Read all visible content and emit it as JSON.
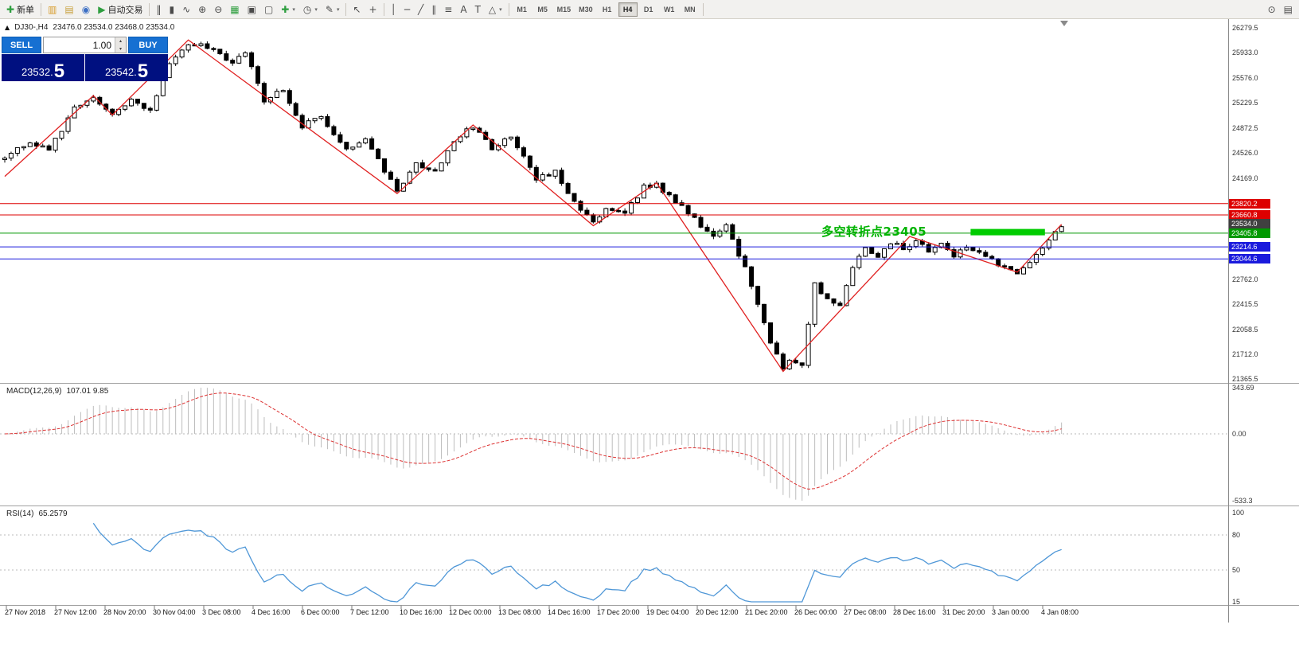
{
  "glyphs": {
    "panel_toggle": "▲",
    "spin_up": "▴",
    "spin_down": "▾",
    "dropdown_caret": "▾"
  },
  "toolbar": {
    "groups": [
      {
        "name": "trade",
        "items": [
          {
            "name": "new-order-button",
            "icon": "new-order-icon",
            "glyph": "✚",
            "glyph_color": "#2e9e3f",
            "label": "新单"
          }
        ]
      },
      {
        "name": "windows",
        "items": [
          {
            "name": "new-chart-button",
            "icon": "new-chart-icon",
            "glyph": "▥",
            "glyph_color": "#d79b28"
          },
          {
            "name": "profiles-button",
            "icon": "profiles-icon",
            "glyph": "▤",
            "glyph_color": "#c8a03c"
          },
          {
            "name": "data-window-button",
            "icon": "data-window-icon",
            "glyph": "◉",
            "glyph_color": "#3d6fc4"
          },
          {
            "name": "autotrade-button",
            "icon": "autotrade-icon",
            "glyph": "▶",
            "glyph_color": "#2e9e3f",
            "label": "自动交易"
          }
        ]
      },
      {
        "name": "chart-controls",
        "items": [
          {
            "name": "bar-chart-button",
            "icon": "bar-chart-icon",
            "glyph": "‖"
          },
          {
            "name": "candlestick-chart-button",
            "icon": "candlestick-icon",
            "glyph": "▮"
          },
          {
            "name": "line-chart-button",
            "icon": "line-chart-icon",
            "glyph": "∿"
          },
          {
            "name": "zoom-in-button",
            "icon": "zoom-in-icon",
            "glyph": "⊕"
          },
          {
            "name": "zoom-out-button",
            "icon": "zoom-out-icon",
            "glyph": "⊖"
          },
          {
            "name": "tile-windows-button",
            "icon": "tile-windows-icon",
            "glyph": "▦",
            "glyph_color": "#2e9e3f"
          },
          {
            "name": "cascade-windows-button",
            "icon": "cascade-windows-icon",
            "glyph": "▣"
          },
          {
            "name": "arrange-windows-button",
            "icon": "arrange-windows-icon",
            "glyph": "▢"
          },
          {
            "name": "new-chart-dropdown",
            "icon": "chart-plus-icon",
            "glyph": "✚",
            "glyph_color": "#2e9e3f",
            "dropdown": true
          },
          {
            "name": "periods-dropdown",
            "icon": "clock-icon",
            "glyph": "◷",
            "dropdown": true
          },
          {
            "name": "templates-dropdown",
            "icon": "pencil-icon",
            "glyph": "✎",
            "dropdown": true
          }
        ]
      },
      {
        "name": "pointer",
        "items": [
          {
            "name": "cursor-button",
            "icon": "cursor-icon",
            "glyph": "↖"
          },
          {
            "name": "crosshair-button",
            "icon": "crosshair-icon",
            "glyph": "+"
          }
        ]
      },
      {
        "name": "objects",
        "items": [
          {
            "name": "vline-button",
            "icon": "vline-icon",
            "glyph": "│"
          },
          {
            "name": "hline-button",
            "icon": "hline-icon",
            "glyph": "─"
          },
          {
            "name": "trendline-button",
            "icon": "trendline-icon",
            "glyph": "╱"
          },
          {
            "name": "channel-button",
            "icon": "channel-icon",
            "glyph": "∥"
          },
          {
            "name": "fibonacci-button",
            "icon": "fibonacci-icon",
            "glyph": "≡"
          },
          {
            "name": "text-button",
            "icon": "text-icon",
            "glyph": "A"
          },
          {
            "name": "label-button",
            "icon": "label-icon",
            "glyph": "T"
          },
          {
            "name": "shapes-dropdown",
            "icon": "shapes-icon",
            "glyph": "△",
            "dropdown": true
          }
        ]
      }
    ],
    "timeframes": [
      {
        "label": "M1",
        "active": false
      },
      {
        "label": "M5",
        "active": false
      },
      {
        "label": "M15",
        "active": false
      },
      {
        "label": "M30",
        "active": false
      },
      {
        "label": "H1",
        "active": false
      },
      {
        "label": "H4",
        "active": true
      },
      {
        "label": "D1",
        "active": false
      },
      {
        "label": "W1",
        "active": false
      },
      {
        "label": "MN",
        "active": false
      }
    ],
    "right_icons": [
      {
        "name": "search-button",
        "icon": "search-icon",
        "glyph": "⊙"
      },
      {
        "name": "layout-button",
        "icon": "layout-icon",
        "glyph": "▤"
      }
    ]
  },
  "legend": {
    "symbol_period": "DJ30-,H4",
    "ohlc": "23476.0 23534.0 23468.0 23534.0"
  },
  "one_click": {
    "sell_label": "SELL",
    "buy_label": "BUY",
    "lot": "1.00",
    "sell_price_main": "23532.",
    "sell_price_pip": "5",
    "buy_price_main": "23542.",
    "buy_price_pip": "5"
  },
  "chart_data": {
    "type": "candlestick",
    "symbol": "DJ30-",
    "period": "H4",
    "bars": 168,
    "price_axis": {
      "min": 21365.5,
      "max": 26279.5,
      "ticks": [
        26279.5,
        25933.0,
        25576.0,
        25229.5,
        24872.5,
        24526.0,
        24169.0,
        22762.0,
        22415.5,
        22058.5,
        21712.0,
        21365.5
      ]
    },
    "hlines": [
      {
        "price": 23820.2,
        "label": "23820.2",
        "color": "#dd0000"
      },
      {
        "price": 23660.8,
        "label": "23660.8",
        "color": "#dd0000"
      },
      {
        "price": 23405.8,
        "label": "23405.8",
        "color": "#009900"
      },
      {
        "price": 23214.6,
        "label": "23214.6",
        "color": "#1a1add"
      },
      {
        "price": 23044.6,
        "label": "23044.6",
        "color": "#1a1add"
      }
    ],
    "current_price": {
      "label": "23534.0",
      "price": 23534.0,
      "color": "#404040"
    },
    "annotation": {
      "text": "多空转折点23405",
      "color": "#00b300"
    },
    "highlight_bar": {
      "from_bar": 153,
      "to_bar": 164,
      "price": 23420,
      "color": "#00cc00"
    },
    "candle_path_pivots": [
      [
        0,
        24450
      ],
      [
        4,
        24700
      ],
      [
        7,
        24560
      ],
      [
        11,
        25150
      ],
      [
        14,
        25320
      ],
      [
        17,
        25060
      ],
      [
        20,
        25280
      ],
      [
        23,
        25120
      ],
      [
        26,
        25800
      ],
      [
        29,
        26060
      ],
      [
        33,
        26000
      ],
      [
        36,
        25780
      ],
      [
        38,
        25950
      ],
      [
        41,
        25250
      ],
      [
        44,
        25420
      ],
      [
        47,
        24900
      ],
      [
        50,
        25050
      ],
      [
        54,
        24550
      ],
      [
        57,
        24700
      ],
      [
        62,
        24000
      ],
      [
        65,
        24380
      ],
      [
        68,
        24280
      ],
      [
        71,
        24700
      ],
      [
        74,
        24900
      ],
      [
        77,
        24600
      ],
      [
        80,
        24750
      ],
      [
        84,
        24150
      ],
      [
        87,
        24280
      ],
      [
        90,
        23850
      ],
      [
        93,
        23540
      ],
      [
        95,
        23780
      ],
      [
        98,
        23680
      ],
      [
        101,
        24050
      ],
      [
        103,
        24090
      ],
      [
        106,
        23850
      ],
      [
        109,
        23600
      ],
      [
        112,
        23350
      ],
      [
        114,
        23500
      ],
      [
        117,
        22900
      ],
      [
        119,
        22400
      ],
      [
        121,
        21900
      ],
      [
        123,
        21500
      ],
      [
        124,
        21650
      ],
      [
        126,
        21580
      ],
      [
        128,
        22680
      ],
      [
        130,
        22480
      ],
      [
        132,
        22380
      ],
      [
        134,
        22950
      ],
      [
        136,
        23200
      ],
      [
        138,
        23100
      ],
      [
        140,
        23280
      ],
      [
        142,
        23180
      ],
      [
        144,
        23300
      ],
      [
        146,
        23150
      ],
      [
        148,
        23280
      ],
      [
        150,
        23060
      ],
      [
        152,
        23230
      ],
      [
        154,
        23120
      ],
      [
        156,
        23020
      ],
      [
        158,
        22950
      ],
      [
        160,
        22870
      ],
      [
        162,
        23020
      ],
      [
        164,
        23180
      ],
      [
        167,
        23530
      ]
    ],
    "zigzag_pivots": [
      [
        0,
        24200
      ],
      [
        14,
        25330
      ],
      [
        17,
        25060
      ],
      [
        29,
        26110
      ],
      [
        62,
        23960
      ],
      [
        74,
        24920
      ],
      [
        93,
        23510
      ],
      [
        103,
        24110
      ],
      [
        123,
        21470
      ],
      [
        143,
        23360
      ],
      [
        160,
        22860
      ],
      [
        167,
        23530
      ]
    ],
    "macd": {
      "legend_name": "MACD(12,26,9)",
      "legend_values": "107.01 9.85",
      "axis_labels": [
        "343.69",
        "0.00",
        "-533.3"
      ],
      "params": [
        12,
        26,
        9
      ]
    },
    "rsi": {
      "legend_name": "RSI(14)",
      "legend_value": "65.2579",
      "axis_labels": [
        100,
        80,
        50,
        15
      ],
      "levels": [
        80,
        50
      ],
      "period": 14
    },
    "time_labels": [
      "27 Nov 2018",
      "27 Nov 12:00",
      "28 Nov 20:00",
      "30 Nov 04:00",
      "3 Dec 08:00",
      "4 Dec 16:00",
      "6 Dec 00:00",
      "7 Dec 12:00",
      "10 Dec 16:00",
      "12 Dec 00:00",
      "13 Dec 08:00",
      "14 Dec 16:00",
      "17 Dec 20:00",
      "19 Dec 04:00",
      "20 Dec 12:00",
      "21 Dec 20:00",
      "26 Dec 00:00",
      "27 Dec 08:00",
      "28 Dec 16:00",
      "31 Dec 20:00",
      "3 Jan 00:00",
      "4 Jan 08:00"
    ],
    "style": {
      "candle_up": "#ffffff",
      "candle_down": "#000000",
      "candle_outline": "#000000",
      "zigzag": "#e02020",
      "macd_histogram": "#bdbdbd",
      "macd_signal": "#dd3333",
      "rsi_line": "#4f97d7",
      "divider": "#a0a0a0",
      "axis_line": "#8c8c8c"
    }
  }
}
